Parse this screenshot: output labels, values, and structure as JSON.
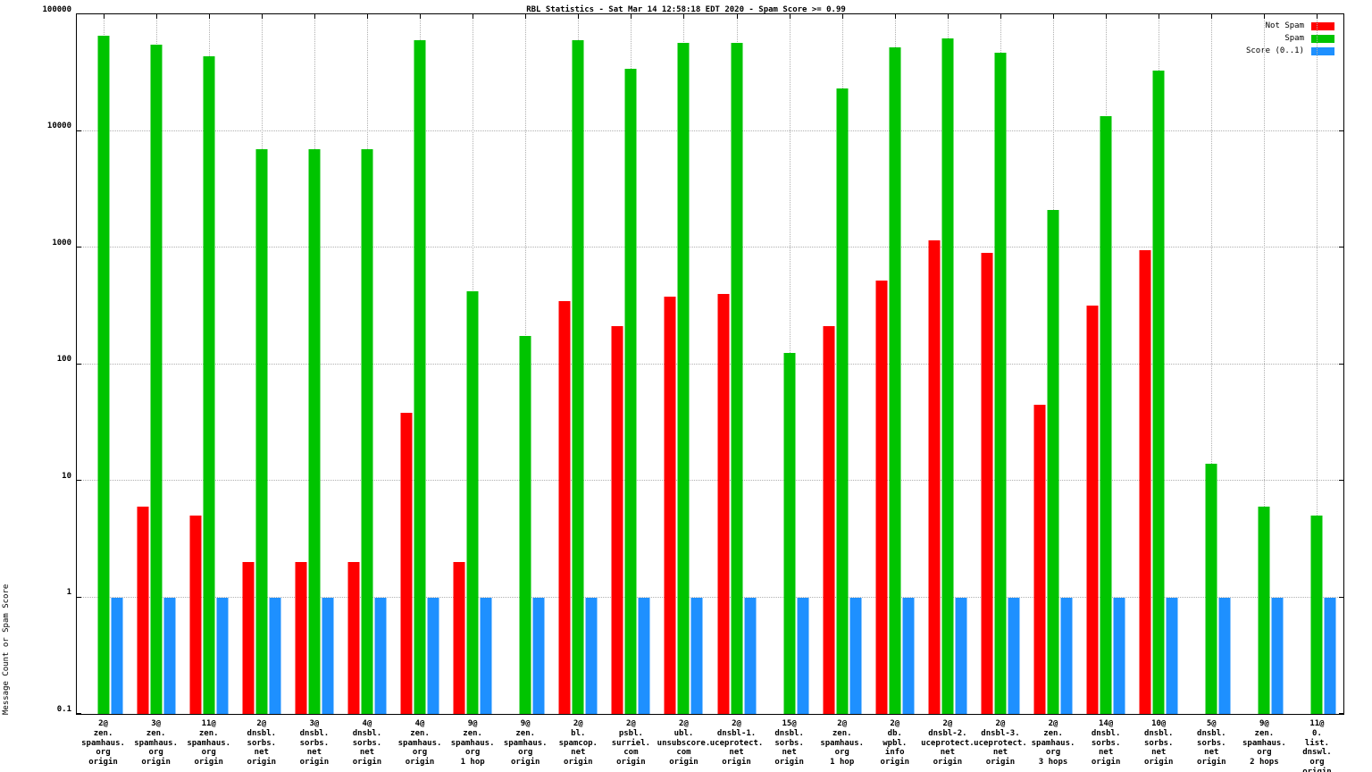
{
  "chart_data": {
    "type": "bar",
    "title": "RBL Statistics - Sat Mar 14 12:58:18 EDT 2020 - Spam Score >= 0.99",
    "ylabel": "Message Count or Spam Score",
    "xlabel": "",
    "y_scale": "log",
    "ylim": [
      0.1,
      100000
    ],
    "y_ticks": [
      "0.1",
      "1",
      "10",
      "100",
      "1000",
      "10000",
      "100000"
    ],
    "grid": true,
    "legend_position": "top-right",
    "colors": {
      "not_spam": "#ff0000",
      "spam": "#00c400",
      "score": "#1e90ff"
    },
    "legend": [
      {
        "label": "Not Spam",
        "color": "#ff0000"
      },
      {
        "label": "Spam",
        "color": "#00c400"
      },
      {
        "label": "Score (0..1)",
        "color": "#1e90ff"
      }
    ],
    "categories": [
      {
        "lines": [
          "2@",
          "zen.",
          "spamhaus.",
          "org",
          "origin"
        ]
      },
      {
        "lines": [
          "3@",
          "zen.",
          "spamhaus.",
          "org",
          "origin"
        ]
      },
      {
        "lines": [
          "11@",
          "zen.",
          "spamhaus.",
          "org",
          "origin"
        ]
      },
      {
        "lines": [
          "2@",
          "dnsbl.",
          "sorbs.",
          "net",
          "origin"
        ]
      },
      {
        "lines": [
          "3@",
          "dnsbl.",
          "sorbs.",
          "net",
          "origin"
        ]
      },
      {
        "lines": [
          "4@",
          "dnsbl.",
          "sorbs.",
          "net",
          "origin"
        ]
      },
      {
        "lines": [
          "4@",
          "zen.",
          "spamhaus.",
          "org",
          "origin"
        ]
      },
      {
        "lines": [
          "9@",
          "zen.",
          "spamhaus.",
          "org",
          "1 hop"
        ]
      },
      {
        "lines": [
          "9@",
          "zen.",
          "spamhaus.",
          "org",
          "origin"
        ]
      },
      {
        "lines": [
          "2@",
          "bl.",
          "spamcop.",
          "net",
          "origin"
        ]
      },
      {
        "lines": [
          "2@",
          "psbl.",
          "surriel.",
          "com",
          "origin"
        ]
      },
      {
        "lines": [
          "2@",
          "ubl.",
          "unsubscore.",
          "com",
          "origin"
        ]
      },
      {
        "lines": [
          "2@",
          "dnsbl-1.",
          "uceprotect.",
          "net",
          "origin"
        ]
      },
      {
        "lines": [
          "15@",
          "dnsbl.",
          "sorbs.",
          "net",
          "origin"
        ]
      },
      {
        "lines": [
          "2@",
          "zen.",
          "spamhaus.",
          "org",
          "1 hop"
        ]
      },
      {
        "lines": [
          "2@",
          "db.",
          "wpbl.",
          "info",
          "origin"
        ]
      },
      {
        "lines": [
          "2@",
          "dnsbl-2.",
          "uceprotect.",
          "net",
          "origin"
        ]
      },
      {
        "lines": [
          "2@",
          "dnsbl-3.",
          "uceprotect.",
          "net",
          "origin"
        ]
      },
      {
        "lines": [
          "2@",
          "zen.",
          "spamhaus.",
          "org",
          "3 hops"
        ]
      },
      {
        "lines": [
          "14@",
          "dnsbl.",
          "sorbs.",
          "net",
          "origin"
        ]
      },
      {
        "lines": [
          "10@",
          "dnsbl.",
          "sorbs.",
          "net",
          "origin"
        ]
      },
      {
        "lines": [
          "5@",
          "dnsbl.",
          "sorbs.",
          "net",
          "origin"
        ]
      },
      {
        "lines": [
          "9@",
          "zen.",
          "spamhaus.",
          "org",
          "2 hops"
        ]
      },
      {
        "lines": [
          "11@",
          "0.",
          "list.",
          "dnswl.",
          "org",
          "origin"
        ]
      }
    ],
    "series": [
      {
        "name": "Not Spam",
        "color": "#ff0000",
        "values": [
          0,
          6,
          5,
          2,
          2,
          2,
          38,
          2,
          0,
          350,
          210,
          380,
          400,
          0,
          210,
          520,
          1150,
          900,
          45,
          320,
          950,
          0,
          0,
          0
        ]
      },
      {
        "name": "Spam",
        "color": "#00c400",
        "values": [
          65000,
          55000,
          44000,
          7000,
          7000,
          7000,
          60000,
          420,
          175,
          60000,
          34000,
          57000,
          57000,
          125,
          23000,
          52000,
          62000,
          47000,
          2100,
          13500,
          33000,
          14,
          6,
          5
        ]
      },
      {
        "name": "Score (0..1)",
        "color": "#1e90ff",
        "values": [
          1,
          1,
          1,
          1,
          1,
          1,
          1,
          1,
          1,
          1,
          1,
          1,
          1,
          1,
          1,
          1,
          1,
          1,
          1,
          1,
          1,
          1,
          1,
          1
        ]
      }
    ]
  }
}
